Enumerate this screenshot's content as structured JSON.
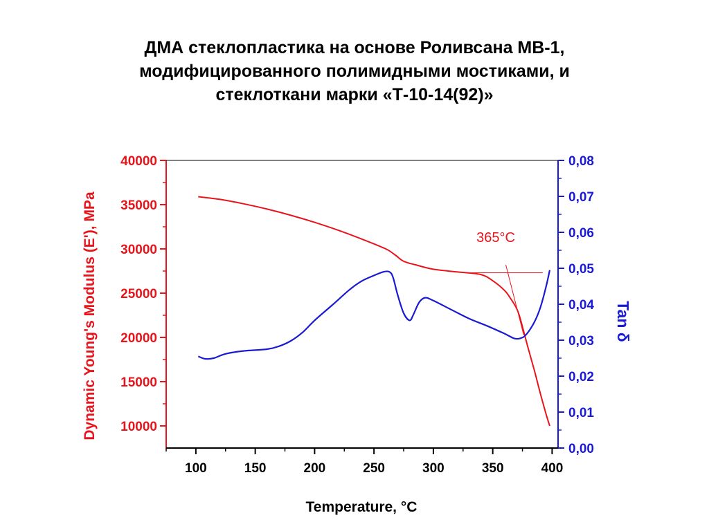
{
  "title_lines": [
    "ДМА  стеклопластика на основе Роливсана МВ-1,",
    "модифицированного полимидными мостиками, и",
    "стеклоткани марки «Т-10-14(92)»"
  ],
  "colors": {
    "modulus": "#e8141c",
    "tan": "#1a1ad2",
    "axis": "#000000"
  },
  "chart_data": {
    "type": "line",
    "xlabel": "Temperature,",
    "xlabel_unit": "°C",
    "ylabel_left": "Dynamic Young's Modulus (E'), MPa",
    "ylabel_right": "Tan δ",
    "xlim": [
      75,
      405
    ],
    "ylim_left": [
      7500,
      40000
    ],
    "ylim_right": [
      0,
      0.08
    ],
    "x_ticks": [
      "100",
      "150",
      "200",
      "250",
      "300",
      "350",
      "400"
    ],
    "y_left_ticks": [
      "40000",
      "35000",
      "30000",
      "25000",
      "20000",
      "15000",
      "10000"
    ],
    "y_right_ticks": [
      "0,08",
      "0,07",
      "0,06",
      "0,05",
      "0,04",
      "0,03",
      "0,02",
      "0,01",
      "0,00"
    ],
    "annotation": {
      "text": "365°C",
      "value": 365
    },
    "series": [
      {
        "axis": "left",
        "x": [
          102,
          120,
          140,
          160,
          180,
          200,
          220,
          240,
          260,
          268,
          275,
          285,
          300,
          320,
          340,
          350,
          360,
          365,
          370,
          373,
          376,
          380,
          385,
          390,
          395,
          398
        ],
        "y": [
          35900,
          35600,
          35100,
          34500,
          33800,
          33000,
          32100,
          31100,
          30000,
          29300,
          28600,
          28200,
          27700,
          27400,
          27100,
          26400,
          25300,
          24400,
          23300,
          22200,
          20700,
          18700,
          16300,
          13700,
          11300,
          10000
        ]
      },
      {
        "axis": "right",
        "x": [
          102,
          108,
          115,
          125,
          140,
          160,
          170,
          180,
          190,
          200,
          215,
          230,
          240,
          250,
          258,
          263,
          266,
          270,
          275,
          280,
          283,
          288,
          293,
          300,
          315,
          330,
          345,
          360,
          368,
          373,
          378,
          385,
          390,
          395,
          398
        ],
        "y": [
          0.0255,
          0.0248,
          0.025,
          0.0262,
          0.027,
          0.0275,
          0.0283,
          0.0298,
          0.0322,
          0.0355,
          0.0398,
          0.0442,
          0.0465,
          0.048,
          0.049,
          0.049,
          0.0475,
          0.0425,
          0.0375,
          0.0355,
          0.037,
          0.0405,
          0.0418,
          0.041,
          0.0385,
          0.036,
          0.034,
          0.0318,
          0.0305,
          0.0305,
          0.0315,
          0.035,
          0.039,
          0.045,
          0.0495
        ]
      }
    ]
  }
}
